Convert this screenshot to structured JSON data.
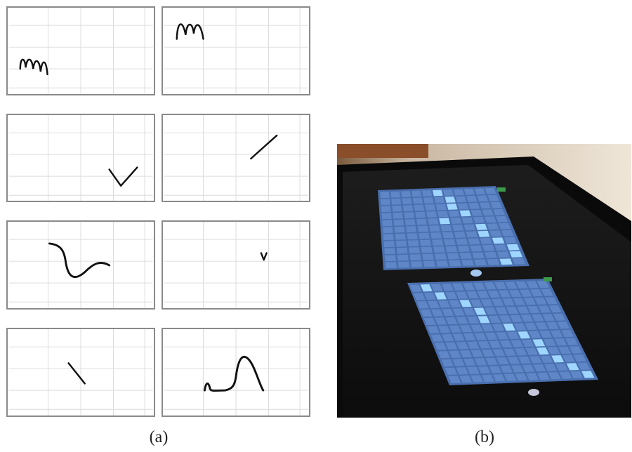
{
  "figure": {
    "captions": {
      "a": "(a)",
      "b": "(b)"
    }
  },
  "panels": [
    {
      "id": "p1",
      "gesture": "m-squiggle-low-left"
    },
    {
      "id": "p2",
      "gesture": "m-squiggle-top-left"
    },
    {
      "id": "p3",
      "gesture": "check-mark"
    },
    {
      "id": "p4",
      "gesture": "diagonal-line-up"
    },
    {
      "id": "p5",
      "gesture": "s-curve"
    },
    {
      "id": "p6",
      "gesture": "small-v"
    },
    {
      "id": "p7",
      "gesture": "diagonal-line-down"
    },
    {
      "id": "p8",
      "gesture": "bump-curve"
    }
  ],
  "photo": {
    "subject": "tabletop-display",
    "colors": {
      "table": "#141414",
      "grid": "#5a7fb8",
      "cell_on": "#9fd6ff",
      "cell_off": "#4a6fae"
    }
  }
}
